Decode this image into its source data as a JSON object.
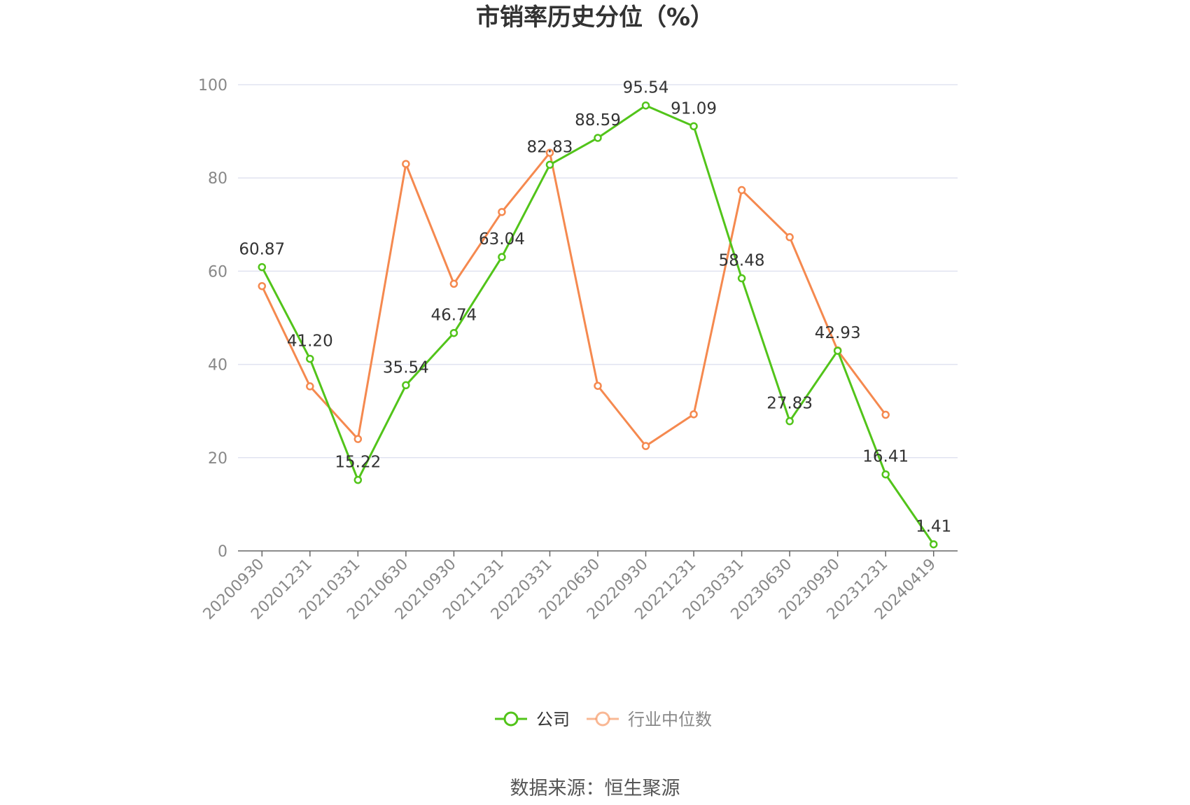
{
  "title": "市销率历史分位（%）",
  "source": "数据来源：恒生聚源",
  "colors": {
    "company": "#52c41a",
    "industry": "#f5894f",
    "grid": "#e0e3f0",
    "axis": "#666666"
  },
  "chart_data": {
    "type": "line",
    "title": "市销率历史分位（%）",
    "xlabel": "",
    "ylabel": "",
    "ylim": [
      0,
      100
    ],
    "yticks": [
      "0",
      "20",
      "40",
      "60",
      "80",
      "100"
    ],
    "grid": true,
    "legend_position": "bottom-center",
    "categories": [
      "20200930",
      "20201231",
      "20210331",
      "20210630",
      "20210930",
      "20211231",
      "20220331",
      "20220630",
      "20220930",
      "20221231",
      "20230331",
      "20230630",
      "20230930",
      "20231231",
      "20240419"
    ],
    "series": [
      {
        "name": "公司",
        "values": [
          60.87,
          41.2,
          15.22,
          35.54,
          46.74,
          63.04,
          82.83,
          88.59,
          95.54,
          91.09,
          58.48,
          27.83,
          42.93,
          16.41,
          1.41
        ],
        "labels": [
          "60.87",
          "41.20",
          "15.22",
          "35.54",
          "46.74",
          "63.04",
          "82.83",
          "88.59",
          "95.54",
          "91.09",
          "58.48",
          "27.83",
          "42.93",
          "16.41",
          "1.41"
        ]
      },
      {
        "name": "行业中位数",
        "values": [
          56.8,
          35.3,
          24.0,
          83.0,
          57.3,
          72.7,
          85.4,
          35.4,
          22.5,
          29.3,
          77.4,
          67.3,
          43.0,
          29.2,
          null
        ]
      }
    ]
  }
}
